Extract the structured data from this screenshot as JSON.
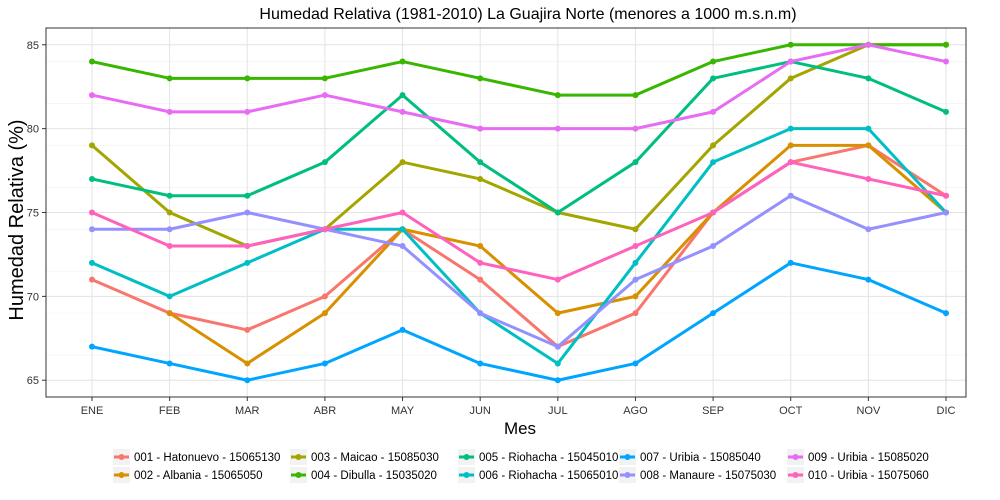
{
  "chart_data": {
    "type": "line",
    "title": "Humedad Relativa (1981-2010) La Guajira Norte (menores a 1000 m.s.n.m)",
    "xlabel": "Mes",
    "ylabel": "Humedad Relativa (%)",
    "categories": [
      "ENE",
      "FEB",
      "MAR",
      "ABR",
      "MAY",
      "JUN",
      "JUL",
      "AGO",
      "SEP",
      "OCT",
      "NOV",
      "DIC"
    ],
    "ylim": [
      64,
      86
    ],
    "yticks": [
      65,
      70,
      75,
      80,
      85
    ],
    "grid": true,
    "legend_position": "bottom",
    "series": [
      {
        "name": "001 - Hatonuevo - 15065130",
        "color": "#F8766D",
        "values": [
          71,
          69,
          68,
          70,
          74,
          71,
          67,
          69,
          75,
          78,
          79,
          76
        ]
      },
      {
        "name": "002 - Albania - 15065050",
        "color": "#D89000",
        "values": [
          null,
          69,
          66,
          69,
          74,
          73,
          69,
          70,
          75,
          79,
          79,
          75
        ]
      },
      {
        "name": "003 - Maicao - 15085030",
        "color": "#A3A500",
        "values": [
          79,
          75,
          73,
          74,
          78,
          77,
          75,
          74,
          79,
          83,
          85,
          85
        ]
      },
      {
        "name": "004 - Dibulla - 15035020",
        "color": "#39B600",
        "values": [
          84,
          83,
          83,
          83,
          84,
          83,
          82,
          82,
          84,
          85,
          85,
          85
        ]
      },
      {
        "name": "005 - Riohacha - 15045010",
        "color": "#00BF7D",
        "values": [
          77,
          76,
          76,
          78,
          82,
          78,
          75,
          78,
          83,
          84,
          83,
          81
        ]
      },
      {
        "name": "006 - Riohacha - 15065010",
        "color": "#00BFC4",
        "values": [
          72,
          70,
          72,
          74,
          74,
          69,
          66,
          72,
          78,
          80,
          80,
          75
        ]
      },
      {
        "name": "007 - Uribia - 15085040",
        "color": "#00A5FF",
        "values": [
          67,
          66,
          65,
          66,
          68,
          66,
          65,
          66,
          69,
          72,
          71,
          69
        ]
      },
      {
        "name": "008 - Manaure - 15075030",
        "color": "#9590FF",
        "values": [
          74,
          74,
          75,
          74,
          73,
          69,
          67,
          71,
          73,
          76,
          74,
          75
        ]
      },
      {
        "name": "009 - Uribia - 15085020",
        "color": "#E76BF3",
        "values": [
          82,
          81,
          81,
          82,
          81,
          80,
          80,
          80,
          81,
          84,
          85,
          84
        ]
      },
      {
        "name": "010 - Uribia - 15075060",
        "color": "#FF62BC",
        "values": [
          75,
          73,
          73,
          74,
          75,
          72,
          71,
          73,
          75,
          78,
          77,
          76
        ]
      }
    ]
  }
}
